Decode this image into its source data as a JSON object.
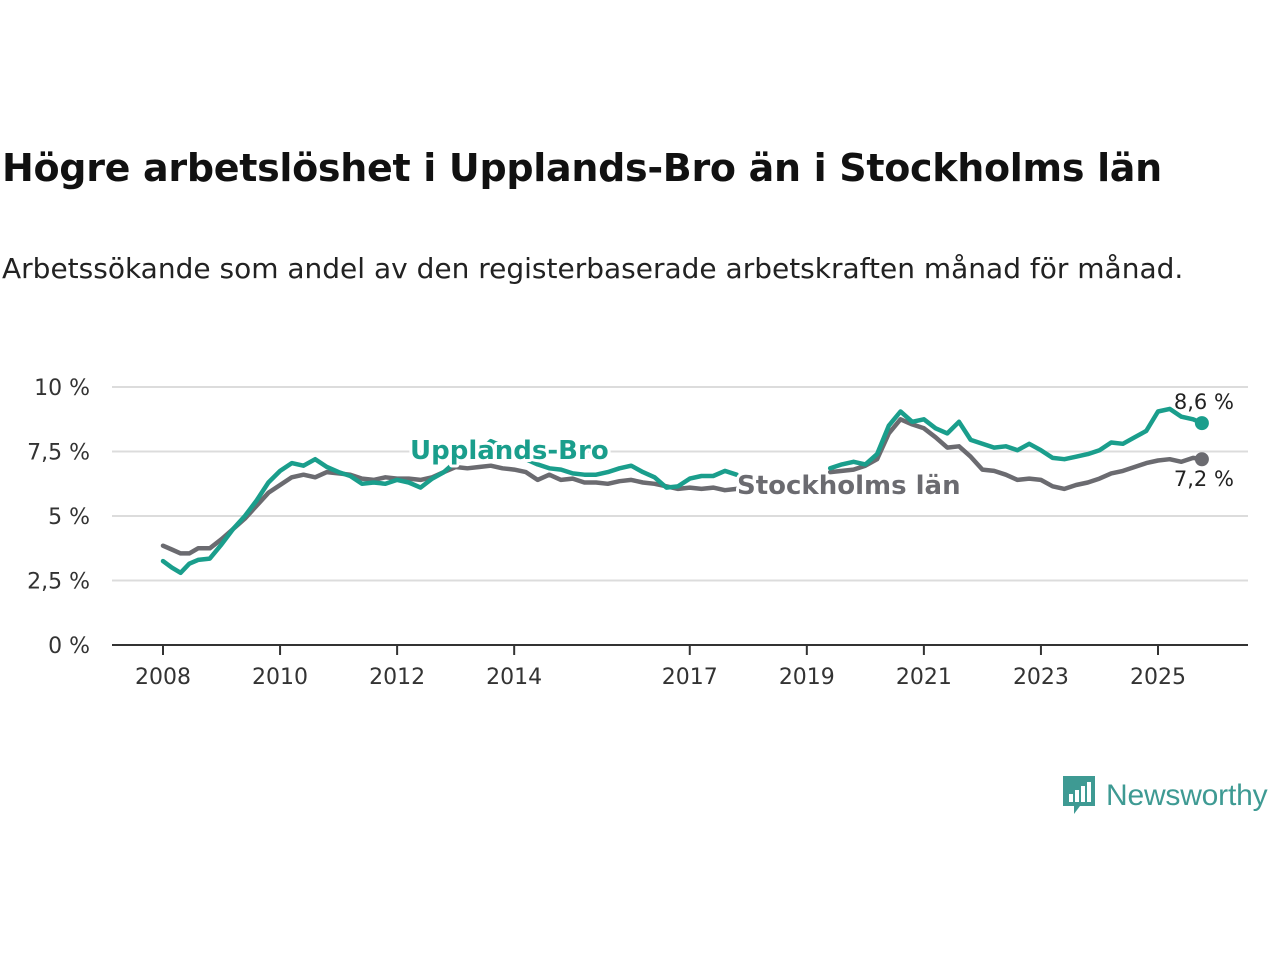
{
  "title": "Högre arbetslöshet i Upplands-Bro än i Stockholms län",
  "subtitle": "Arbetssökande som andel av den registerbaserade arbetskraften månad för månad.",
  "brand": {
    "name": "Newsworthy",
    "color": "#3e9a93"
  },
  "chart_data": {
    "type": "line",
    "title": "Högre arbetslöshet i Upplands-Bro än i Stockholms län",
    "xlabel": "",
    "ylabel": "",
    "xlim": [
      2007.5,
      2026.35
    ],
    "ylim": [
      0,
      10
    ],
    "y_ticks": [
      {
        "value": 0,
        "label": "0 %"
      },
      {
        "value": 2.5,
        "label": "2,5 %"
      },
      {
        "value": 5,
        "label": "5 %"
      },
      {
        "value": 7.5,
        "label": "7,5 %"
      },
      {
        "value": 10,
        "label": "10 %"
      }
    ],
    "x_ticks": [
      {
        "value": 2008,
        "label": "2008"
      },
      {
        "value": 2010,
        "label": "2010"
      },
      {
        "value": 2012,
        "label": "2012"
      },
      {
        "value": 2014,
        "label": "2014"
      },
      {
        "value": 2017,
        "label": "2017"
      },
      {
        "value": 2019,
        "label": "2019"
      },
      {
        "value": 2021,
        "label": "2021"
      },
      {
        "value": 2023,
        "label": "2023"
      },
      {
        "value": 2025,
        "label": "2025"
      }
    ],
    "grid": true,
    "series": [
      {
        "name": "Stockholms län",
        "color": "#6b6b70",
        "end_label": "7,2 %",
        "segments": [
          [
            [
              2008.0,
              3.85
            ],
            [
              2008.15,
              3.7
            ],
            [
              2008.3,
              3.55
            ],
            [
              2008.45,
              3.55
            ],
            [
              2008.6,
              3.75
            ],
            [
              2008.8,
              3.75
            ],
            [
              2009.0,
              4.1
            ],
            [
              2009.2,
              4.5
            ],
            [
              2009.4,
              4.9
            ],
            [
              2009.6,
              5.4
            ],
            [
              2009.8,
              5.9
            ],
            [
              2010.0,
              6.2
            ],
            [
              2010.2,
              6.5
            ],
            [
              2010.4,
              6.6
            ],
            [
              2010.6,
              6.5
            ],
            [
              2010.8,
              6.7
            ],
            [
              2011.0,
              6.65
            ],
            [
              2011.2,
              6.6
            ],
            [
              2011.4,
              6.45
            ],
            [
              2011.6,
              6.4
            ],
            [
              2011.8,
              6.5
            ],
            [
              2012.0,
              6.45
            ],
            [
              2012.2,
              6.45
            ],
            [
              2012.4,
              6.4
            ],
            [
              2012.6,
              6.5
            ],
            [
              2012.8,
              6.7
            ],
            [
              2013.0,
              6.9
            ],
            [
              2013.2,
              6.85
            ],
            [
              2013.4,
              6.9
            ],
            [
              2013.6,
              6.95
            ],
            [
              2013.8,
              6.85
            ],
            [
              2014.0,
              6.8
            ],
            [
              2014.2,
              6.7
            ],
            [
              2014.4,
              6.4
            ],
            [
              2014.6,
              6.6
            ],
            [
              2014.8,
              6.4
            ],
            [
              2015.0,
              6.45
            ],
            [
              2015.2,
              6.3
            ],
            [
              2015.4,
              6.3
            ],
            [
              2015.6,
              6.25
            ],
            [
              2015.8,
              6.35
            ],
            [
              2016.0,
              6.4
            ],
            [
              2016.2,
              6.3
            ],
            [
              2016.4,
              6.25
            ],
            [
              2016.6,
              6.15
            ],
            [
              2016.8,
              6.05
            ],
            [
              2017.0,
              6.1
            ],
            [
              2017.2,
              6.05
            ],
            [
              2017.4,
              6.1
            ],
            [
              2017.6,
              6.0
            ],
            [
              2017.8,
              6.05
            ]
          ],
          [
            [
              2019.4,
              6.7
            ],
            [
              2019.6,
              6.75
            ],
            [
              2019.8,
              6.8
            ],
            [
              2020.0,
              6.95
            ],
            [
              2020.2,
              7.2
            ],
            [
              2020.4,
              8.2
            ],
            [
              2020.6,
              8.75
            ],
            [
              2020.8,
              8.55
            ],
            [
              2021.0,
              8.4
            ],
            [
              2021.2,
              8.05
            ],
            [
              2021.4,
              7.65
            ],
            [
              2021.6,
              7.7
            ],
            [
              2021.8,
              7.3
            ],
            [
              2022.0,
              6.8
            ],
            [
              2022.2,
              6.75
            ],
            [
              2022.4,
              6.6
            ],
            [
              2022.6,
              6.4
            ],
            [
              2022.8,
              6.45
            ],
            [
              2023.0,
              6.4
            ],
            [
              2023.2,
              6.15
            ],
            [
              2023.4,
              6.05
            ],
            [
              2023.6,
              6.2
            ],
            [
              2023.8,
              6.3
            ],
            [
              2024.0,
              6.45
            ],
            [
              2024.2,
              6.65
            ],
            [
              2024.4,
              6.75
            ],
            [
              2024.6,
              6.9
            ],
            [
              2024.8,
              7.05
            ],
            [
              2025.0,
              7.15
            ],
            [
              2025.2,
              7.2
            ],
            [
              2025.4,
              7.1
            ],
            [
              2025.6,
              7.25
            ],
            [
              2025.75,
              7.2
            ]
          ]
        ]
      },
      {
        "name": "Upplands-Bro",
        "color": "#1a9e8c",
        "end_label": "8,6 %",
        "segments": [
          [
            [
              2008.0,
              3.25
            ],
            [
              2008.15,
              3.0
            ],
            [
              2008.3,
              2.8
            ],
            [
              2008.45,
              3.15
            ],
            [
              2008.6,
              3.3
            ],
            [
              2008.8,
              3.35
            ],
            [
              2009.0,
              3.9
            ],
            [
              2009.2,
              4.5
            ],
            [
              2009.4,
              5.0
            ],
            [
              2009.6,
              5.6
            ],
            [
              2009.8,
              6.3
            ],
            [
              2010.0,
              6.75
            ],
            [
              2010.2,
              7.05
            ],
            [
              2010.4,
              6.95
            ],
            [
              2010.6,
              7.2
            ],
            [
              2010.8,
              6.9
            ],
            [
              2011.0,
              6.7
            ],
            [
              2011.2,
              6.55
            ],
            [
              2011.4,
              6.25
            ],
            [
              2011.6,
              6.3
            ],
            [
              2011.8,
              6.25
            ],
            [
              2012.0,
              6.4
            ],
            [
              2012.2,
              6.3
            ],
            [
              2012.4,
              6.1
            ],
            [
              2012.6,
              6.45
            ],
            [
              2012.8,
              6.7
            ],
            [
              2013.0,
              7.1
            ],
            [
              2013.2,
              7.3
            ],
            [
              2013.4,
              7.5
            ],
            [
              2013.6,
              7.9
            ],
            [
              2013.8,
              7.7
            ],
            [
              2014.0,
              7.5
            ],
            [
              2014.2,
              7.2
            ],
            [
              2014.4,
              7.0
            ],
            [
              2014.6,
              6.85
            ],
            [
              2014.8,
              6.8
            ],
            [
              2015.0,
              6.65
            ],
            [
              2015.2,
              6.6
            ],
            [
              2015.4,
              6.6
            ],
            [
              2015.6,
              6.7
            ],
            [
              2015.8,
              6.85
            ],
            [
              2016.0,
              6.95
            ],
            [
              2016.2,
              6.7
            ],
            [
              2016.4,
              6.5
            ],
            [
              2016.6,
              6.1
            ],
            [
              2016.8,
              6.15
            ],
            [
              2017.0,
              6.45
            ],
            [
              2017.2,
              6.55
            ],
            [
              2017.4,
              6.55
            ],
            [
              2017.6,
              6.75
            ],
            [
              2017.8,
              6.6
            ]
          ],
          [
            [
              2019.4,
              6.85
            ],
            [
              2019.6,
              7.0
            ],
            [
              2019.8,
              7.1
            ],
            [
              2020.0,
              7.0
            ],
            [
              2020.2,
              7.4
            ],
            [
              2020.4,
              8.5
            ],
            [
              2020.6,
              9.05
            ],
            [
              2020.8,
              8.65
            ],
            [
              2021.0,
              8.75
            ],
            [
              2021.2,
              8.4
            ],
            [
              2021.4,
              8.2
            ],
            [
              2021.6,
              8.65
            ],
            [
              2021.8,
              7.95
            ],
            [
              2022.0,
              7.8
            ],
            [
              2022.2,
              7.65
            ],
            [
              2022.4,
              7.7
            ],
            [
              2022.6,
              7.55
            ],
            [
              2022.8,
              7.8
            ],
            [
              2023.0,
              7.55
            ],
            [
              2023.2,
              7.25
            ],
            [
              2023.4,
              7.2
            ],
            [
              2023.6,
              7.3
            ],
            [
              2023.8,
              7.4
            ],
            [
              2024.0,
              7.55
            ],
            [
              2024.2,
              7.85
            ],
            [
              2024.4,
              7.8
            ],
            [
              2024.6,
              8.05
            ],
            [
              2024.8,
              8.3
            ],
            [
              2025.0,
              9.05
            ],
            [
              2025.2,
              9.15
            ],
            [
              2025.4,
              8.85
            ],
            [
              2025.6,
              8.75
            ],
            [
              2025.75,
              8.6
            ]
          ]
        ]
      }
    ],
    "annotations": [
      {
        "series": "Upplands-Bro",
        "text": "Upplands-Bro"
      },
      {
        "series": "Stockholms län",
        "text": "Stockholms län"
      }
    ]
  }
}
